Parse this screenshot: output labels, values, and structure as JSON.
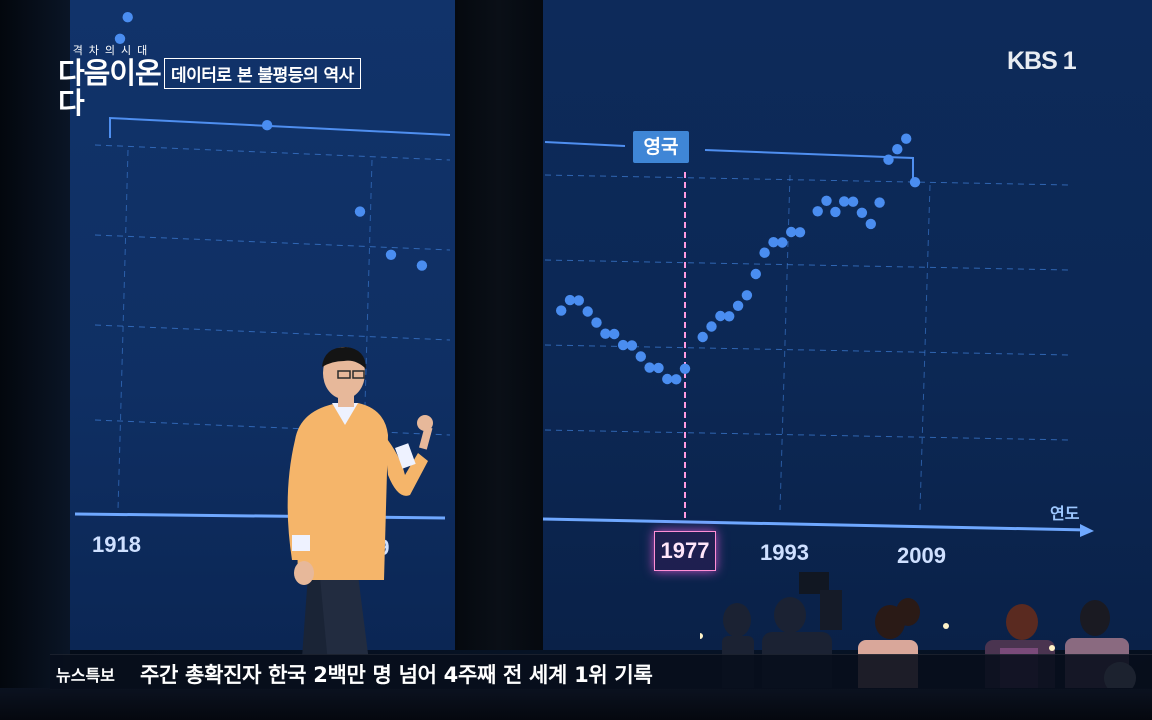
{
  "show": {
    "subtitle": "격차의시대",
    "title_line": "다음이온다",
    "episode_title": "데이터로 본 불평등의 역사"
  },
  "channel": {
    "logo_text": "KBS 1"
  },
  "chart_data": {
    "type": "scatter",
    "country_label": "영국",
    "xlabel": "연도",
    "x_ticks": [
      "1918",
      "49",
      "1977",
      "1993",
      "2009"
    ],
    "highlight_year": "1977",
    "series": [
      {
        "color": "#4a8df0",
        "points": [
          [
            1918,
            64
          ],
          [
            1919,
            66
          ],
          [
            1937,
            56
          ],
          [
            1949,
            48
          ],
          [
            1953,
            44
          ],
          [
            1957,
            43
          ],
          [
            1963,
            39
          ],
          [
            1964,
            40
          ],
          [
            1965,
            40
          ],
          [
            1966,
            39
          ],
          [
            1967,
            38
          ],
          [
            1968,
            37
          ],
          [
            1969,
            37
          ],
          [
            1970,
            36
          ],
          [
            1971,
            36
          ],
          [
            1972,
            35
          ],
          [
            1973,
            34
          ],
          [
            1974,
            34
          ],
          [
            1975,
            33
          ],
          [
            1976,
            33
          ],
          [
            1977,
            34
          ],
          [
            1979,
            37
          ],
          [
            1980,
            38
          ],
          [
            1981,
            39
          ],
          [
            1982,
            39
          ],
          [
            1983,
            40
          ],
          [
            1984,
            41
          ],
          [
            1985,
            43
          ],
          [
            1986,
            45
          ],
          [
            1987,
            46
          ],
          [
            1988,
            46
          ],
          [
            1989,
            47
          ],
          [
            1990,
            47
          ],
          [
            1992,
            49
          ],
          [
            1993,
            50
          ],
          [
            1994,
            49
          ],
          [
            1995,
            50
          ],
          [
            1996,
            50
          ],
          [
            1997,
            49
          ],
          [
            1998,
            48
          ],
          [
            1999,
            50
          ],
          [
            2000,
            54
          ],
          [
            2001,
            55
          ],
          [
            2002,
            56
          ],
          [
            2003,
            52
          ]
        ]
      }
    ]
  },
  "ticker": {
    "label": "뉴스특보",
    "headline": "주간 총확진자 한국 2백만 명 넘어 4주째 전 세계 1위 기록"
  }
}
